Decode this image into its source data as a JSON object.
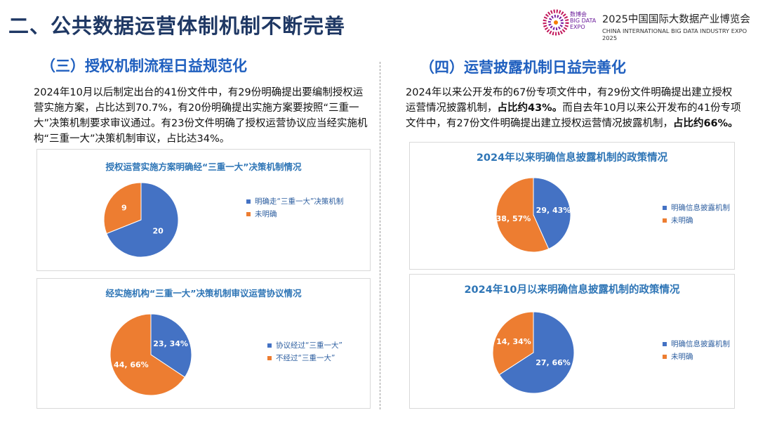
{
  "header": {
    "title": "二、公共数据运营体制机制不断完善",
    "logo_cn": "数博会",
    "logo_en_1": "BIG DATA",
    "logo_en_2": "EXPO",
    "expo_name": "2025中国国际大数据产业博览会",
    "expo_name_en": "CHINA INTERNATIONAL BIG DATA INDUSTRY EXPO 2025"
  },
  "sections": [
    {
      "heading": "（三）授权机制流程日益规范化",
      "paragraph": [
        {
          "text": "2024年10月以后制定出台的41份文件中，有29份明确提出要编制授权运营实施方案，占比达到70.7%，有20份明确提出实施方案要按照“三重一大”决策机制要求审议通过。有23份文件明确了授权运营协议应当经实施机构“三重一大”决策机制审议，占比达34%。",
          "bold": false
        }
      ]
    },
    {
      "heading": "（四）运营披露机制日益完善化",
      "paragraph": [
        {
          "text": "2024年以来公开发布的67份专项文件中，有29份文件明确提出建立授权运营情况披露机制，",
          "bold": false
        },
        {
          "text": "占比约43%。",
          "bold": true
        },
        {
          "text": "而自去年10月以来公开发布的41份专项文件中，有27份文件明确提出建立授权运营情况披露机制，",
          "bold": false
        },
        {
          "text": "占比约66%。",
          "bold": true
        }
      ]
    }
  ],
  "chart_data": [
    {
      "type": "pie",
      "title": "授权运营实施方案明确经“三重一大”决策机制情况",
      "categories": [
        "明确走“三重一大”决策机制",
        "未明确"
      ],
      "values": [
        20,
        9
      ],
      "colors": [
        "#4472c4",
        "#ed7d31"
      ]
    },
    {
      "type": "pie",
      "title": "经实施机构“三重一大”决策机制审议运营协议情况",
      "categories": [
        "协议经过“三重一大”",
        "不经过“三重一大”"
      ],
      "values": [
        23,
        44
      ],
      "value_labels": [
        "23, 34%",
        "44, 66%"
      ],
      "colors": [
        "#4472c4",
        "#ed7d31"
      ]
    },
    {
      "type": "pie",
      "title": "2024年以来明确信息披露机制的政策情况",
      "categories": [
        "明确信息披露机制",
        "未明确"
      ],
      "values": [
        29,
        38
      ],
      "value_labels": [
        "29, 43%",
        "38, 57%"
      ],
      "colors": [
        "#4472c4",
        "#ed7d31"
      ]
    },
    {
      "type": "pie",
      "title": "2024年10月以来明确信息披露机制的政策情况",
      "categories": [
        "明确信息披露机制",
        "未明确"
      ],
      "values": [
        27,
        14
      ],
      "value_labels": [
        "27, 66%",
        "14, 34%"
      ],
      "colors": [
        "#4472c4",
        "#ed7d31"
      ]
    }
  ]
}
